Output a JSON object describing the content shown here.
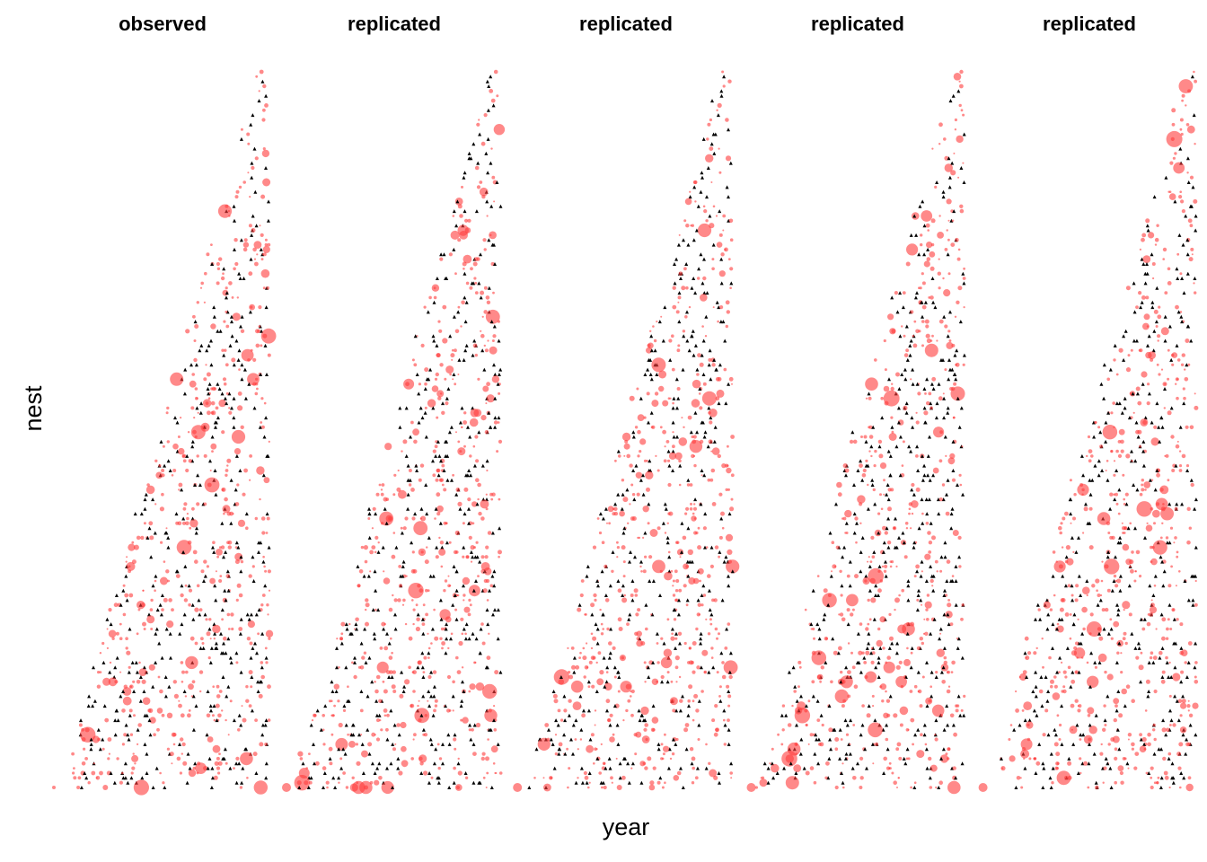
{
  "chart_data": {
    "type": "scatter",
    "xlabel": "year",
    "ylabel": "nest",
    "grid": false,
    "legend": "none",
    "colors": {
      "point": "#ff3b3b",
      "marker": "#000000"
    },
    "panels": [
      {
        "title": "observed",
        "seed": 11
      },
      {
        "title": "replicated",
        "seed": 23
      },
      {
        "title": "replicated",
        "seed": 37
      },
      {
        "title": "replicated",
        "seed": 51
      },
      {
        "title": "replicated",
        "seed": 73
      }
    ]
  }
}
